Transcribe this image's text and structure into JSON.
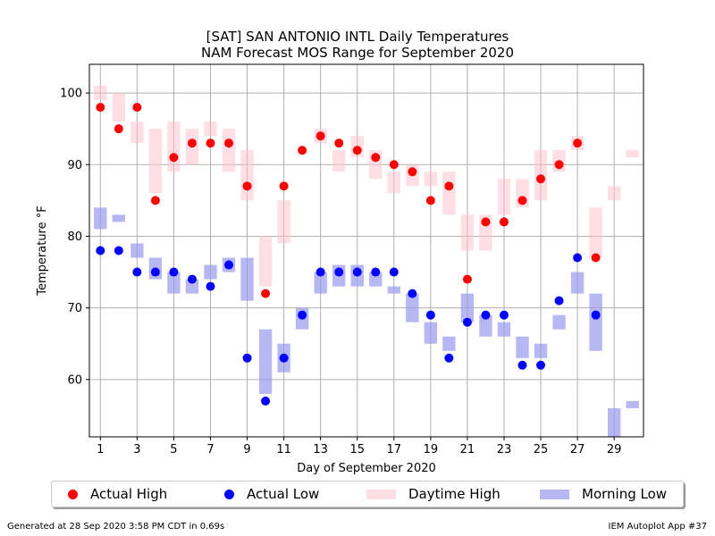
{
  "title_line1": "[SAT] SAN ANTONIO INTL Daily Temperatures",
  "title_line2": "NAM Forecast MOS Range for September 2020",
  "footer_left": "Generated at 28 Sep 2020 3:58 PM CDT in 0.69s",
  "footer_right": "IEM Autoplot App #37",
  "legend": {
    "actual_high": "Actual High",
    "actual_low": "Actual Low",
    "daytime_high": "Daytime High",
    "morning_low": "Morning Low"
  },
  "colors": {
    "actual_high": "#ff0000",
    "actual_low": "#0000ff",
    "daytime_high": "#ffc0cb",
    "morning_low": "#9999ee",
    "grid": "#b0b0b0"
  },
  "chart_data": {
    "type": "scatter",
    "xlabel": "Day of September 2020",
    "ylabel": "Temperature °F",
    "xlim": [
      0.4,
      30.6
    ],
    "ylim": [
      52,
      104
    ],
    "xticks": [
      1,
      3,
      5,
      7,
      9,
      11,
      13,
      15,
      17,
      19,
      21,
      23,
      25,
      27,
      29
    ],
    "yticks": [
      60,
      70,
      80,
      90,
      100
    ],
    "grid": true,
    "legend_position": "bottom",
    "actual_high": [
      [
        1,
        98
      ],
      [
        2,
        95
      ],
      [
        3,
        98
      ],
      [
        4,
        85
      ],
      [
        5,
        91
      ],
      [
        6,
        93
      ],
      [
        7,
        93
      ],
      [
        8,
        93
      ],
      [
        9,
        87
      ],
      [
        10,
        72
      ],
      [
        11,
        87
      ],
      [
        12,
        92
      ],
      [
        13,
        94
      ],
      [
        14,
        93
      ],
      [
        15,
        92
      ],
      [
        16,
        91
      ],
      [
        17,
        90
      ],
      [
        18,
        89
      ],
      [
        19,
        85
      ],
      [
        20,
        87
      ],
      [
        21,
        74
      ],
      [
        22,
        82
      ],
      [
        23,
        82
      ],
      [
        24,
        85
      ],
      [
        25,
        88
      ],
      [
        26,
        90
      ],
      [
        27,
        93
      ],
      [
        28,
        77
      ]
    ],
    "actual_low": [
      [
        1,
        78
      ],
      [
        2,
        78
      ],
      [
        3,
        75
      ],
      [
        4,
        75
      ],
      [
        5,
        75
      ],
      [
        6,
        74
      ],
      [
        7,
        73
      ],
      [
        8,
        76
      ],
      [
        9,
        63
      ],
      [
        10,
        57
      ],
      [
        11,
        63
      ],
      [
        12,
        69
      ],
      [
        13,
        75
      ],
      [
        14,
        75
      ],
      [
        15,
        75
      ],
      [
        16,
        75
      ],
      [
        17,
        75
      ],
      [
        18,
        72
      ],
      [
        19,
        69
      ],
      [
        20,
        63
      ],
      [
        21,
        68
      ],
      [
        22,
        69
      ],
      [
        23,
        69
      ],
      [
        24,
        62
      ],
      [
        25,
        62
      ],
      [
        26,
        71
      ],
      [
        27,
        77
      ],
      [
        28,
        69
      ]
    ],
    "daytime_high_range": [
      [
        1,
        99,
        101
      ],
      [
        2,
        96,
        100
      ],
      [
        3,
        93,
        96
      ],
      [
        4,
        86,
        95
      ],
      [
        5,
        89,
        96
      ],
      [
        6,
        90,
        95
      ],
      [
        7,
        94,
        96
      ],
      [
        8,
        89,
        95
      ],
      [
        9,
        85,
        92
      ],
      [
        10,
        73,
        80
      ],
      [
        11,
        79,
        85
      ],
      [
        12,
        92,
        92
      ],
      [
        13,
        93,
        95
      ],
      [
        14,
        89,
        92
      ],
      [
        15,
        91,
        94
      ],
      [
        16,
        88,
        92
      ],
      [
        17,
        86,
        89
      ],
      [
        18,
        87,
        90
      ],
      [
        19,
        87,
        89
      ],
      [
        20,
        83,
        89
      ],
      [
        21,
        78,
        83
      ],
      [
        22,
        78,
        83
      ],
      [
        23,
        83,
        88
      ],
      [
        24,
        84,
        88
      ],
      [
        25,
        85,
        92
      ],
      [
        26,
        89,
        92
      ],
      [
        27,
        92,
        94
      ],
      [
        28,
        77,
        84
      ],
      [
        29,
        85,
        87
      ],
      [
        30,
        91,
        92
      ]
    ],
    "morning_low_range": [
      [
        1,
        81,
        84
      ],
      [
        2,
        82,
        83
      ],
      [
        3,
        77,
        79
      ],
      [
        4,
        74,
        77
      ],
      [
        5,
        72,
        75
      ],
      [
        6,
        72,
        74
      ],
      [
        7,
        74,
        76
      ],
      [
        8,
        75,
        77
      ],
      [
        9,
        71,
        77
      ],
      [
        10,
        58,
        67
      ],
      [
        11,
        61,
        65
      ],
      [
        12,
        67,
        70
      ],
      [
        13,
        72,
        75
      ],
      [
        14,
        73,
        76
      ],
      [
        15,
        73,
        76
      ],
      [
        16,
        73,
        75
      ],
      [
        17,
        72,
        73
      ],
      [
        18,
        68,
        72
      ],
      [
        19,
        65,
        68
      ],
      [
        20,
        64,
        66
      ],
      [
        21,
        68,
        72
      ],
      [
        22,
        66,
        69
      ],
      [
        23,
        66,
        68
      ],
      [
        24,
        63,
        66
      ],
      [
        25,
        63,
        65
      ],
      [
        26,
        67,
        69
      ],
      [
        27,
        72,
        75
      ],
      [
        28,
        64,
        72
      ],
      [
        29,
        52,
        56
      ],
      [
        30,
        56,
        57
      ]
    ]
  }
}
